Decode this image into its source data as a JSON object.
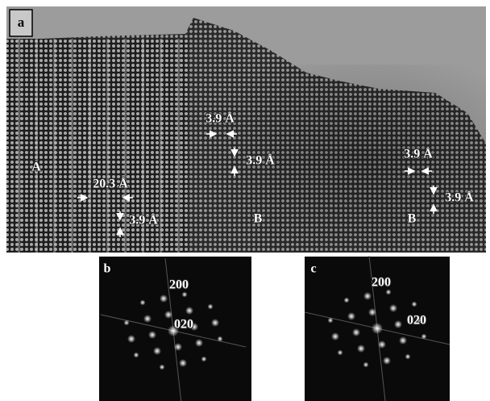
{
  "panels": [
    {
      "label": "a",
      "annotations": [
        "A",
        "20.3 Å",
        "3.9 Å",
        "3.9 Å",
        "3.9 Å",
        "B",
        "3.9 Å",
        "3.9 Å",
        "B"
      ]
    },
    {
      "label": "b",
      "annotations": [
        "200",
        "020"
      ]
    },
    {
      "label": "c",
      "annotations": [
        "200",
        "020"
      ]
    }
  ]
}
